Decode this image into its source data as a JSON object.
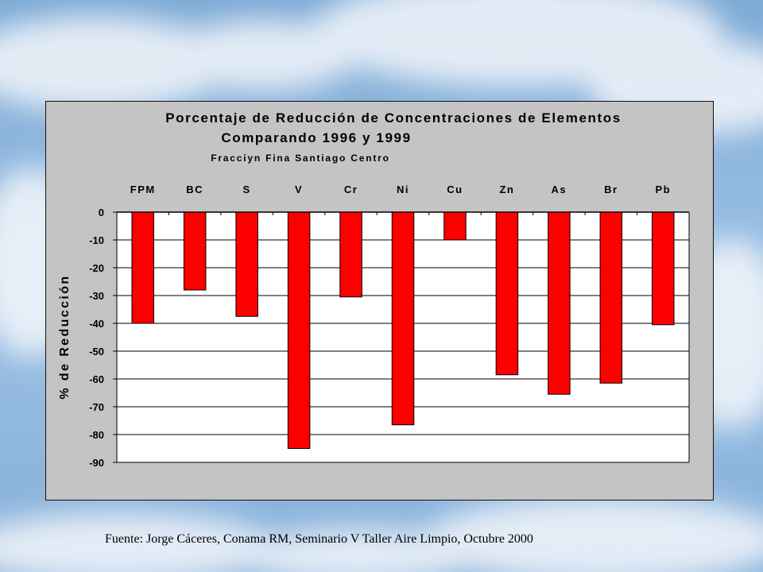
{
  "chart_data": {
    "type": "bar",
    "title": "Porcentaje de Reducción de Concentraciones de Elementos",
    "subtitle": "Comparando 1996 y 1999",
    "subtitle2": "Fracciyn Fina Santiago Centro",
    "ylabel": "% de Reducción",
    "xlabel": "",
    "categories": [
      "FPM",
      "BC",
      "S",
      "V",
      "Cr",
      "Ni",
      "Cu",
      "Zn",
      "As",
      "Br",
      "Pb"
    ],
    "values": [
      -40,
      -28,
      -37.5,
      -85,
      -30.5,
      -76.5,
      -10,
      -58.5,
      -65.5,
      -61.5,
      -40.5
    ],
    "ylim": [
      -90,
      0
    ],
    "yticks": [
      0,
      -10,
      -20,
      -30,
      -40,
      -50,
      -60,
      -70,
      -80,
      -90
    ],
    "grid": true,
    "bar_color": "#ff0000",
    "plot_background": "#ffffff",
    "panel_background": "#c4c4c4"
  },
  "footer": {
    "source": "Fuente: Jorge Cáceres, Conama RM, Seminario V  Taller Aire Limpio, Octubre 2000"
  }
}
